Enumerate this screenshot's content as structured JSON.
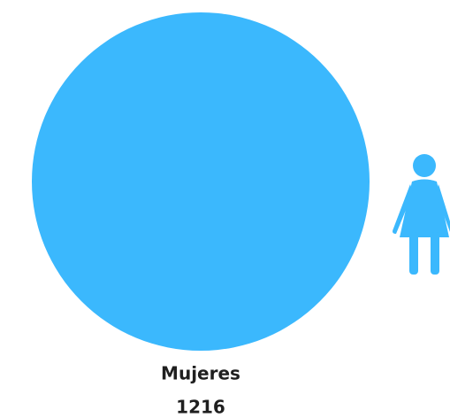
{
  "chart_data": {
    "type": "bubble",
    "categories": [
      "Mujeres"
    ],
    "values": [
      1216
    ],
    "color": "#3bb8fd"
  }
}
